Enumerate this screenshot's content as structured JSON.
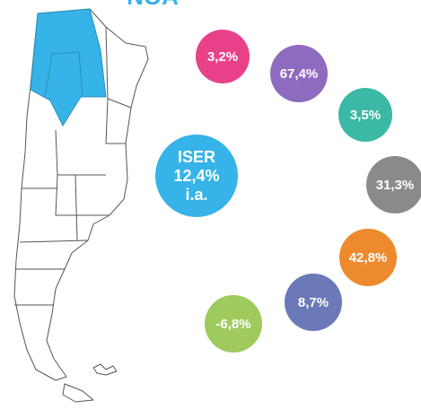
{
  "title": "NOA",
  "center": {
    "lines": [
      "ISER",
      "12,4%",
      "i.a."
    ],
    "color": "#36b3e8"
  },
  "bubbles": [
    {
      "label": "3,2%",
      "color": "#e8418a"
    },
    {
      "label": "67,4%",
      "color": "#8f6bbf"
    },
    {
      "label": "3,5%",
      "color": "#3cb8a6"
    },
    {
      "label": "31,3%",
      "color": "#8a8a8a"
    },
    {
      "label": "42,8%",
      "color": "#ee8a2e"
    },
    {
      "label": "8,7%",
      "color": "#6b79b8"
    },
    {
      "label": "-6,8%",
      "color": "#9fcb5e"
    }
  ]
}
